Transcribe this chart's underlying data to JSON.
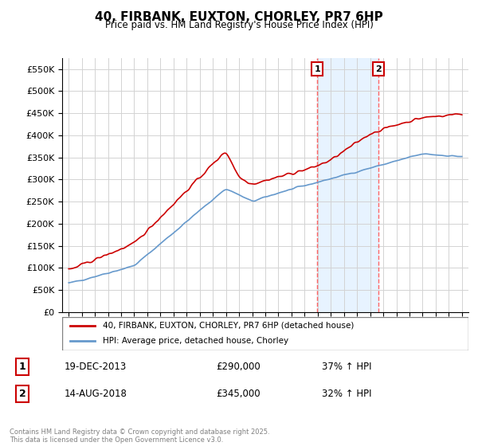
{
  "title": "40, FIRBANK, EUXTON, CHORLEY, PR7 6HP",
  "subtitle": "Price paid vs. HM Land Registry's House Price Index (HPI)",
  "legend_line1": "40, FIRBANK, EUXTON, CHORLEY, PR7 6HP (detached house)",
  "legend_line2": "HPI: Average price, detached house, Chorley",
  "annotation1_label": "1",
  "annotation1_date": "19-DEC-2013",
  "annotation1_price": "£290,000",
  "annotation1_hpi": "37% ↑ HPI",
  "annotation2_label": "2",
  "annotation2_date": "14-AUG-2018",
  "annotation2_price": "£345,000",
  "annotation2_hpi": "32% ↑ HPI",
  "footer": "Contains HM Land Registry data © Crown copyright and database right 2025.\nThis data is licensed under the Open Government Licence v3.0.",
  "hpi_color": "#6699cc",
  "price_color": "#cc0000",
  "annotation_vline_color": "#ff6666",
  "shading_color": "#ddeeff",
  "ylim": [
    0,
    575000
  ],
  "yticks": [
    0,
    50000,
    100000,
    150000,
    200000,
    250000,
    300000,
    350000,
    400000,
    450000,
    500000,
    550000
  ],
  "ytick_labels": [
    "£0",
    "£50K",
    "£100K",
    "£150K",
    "£200K",
    "£250K",
    "£300K",
    "£350K",
    "£400K",
    "£450K",
    "£500K",
    "£550K"
  ]
}
